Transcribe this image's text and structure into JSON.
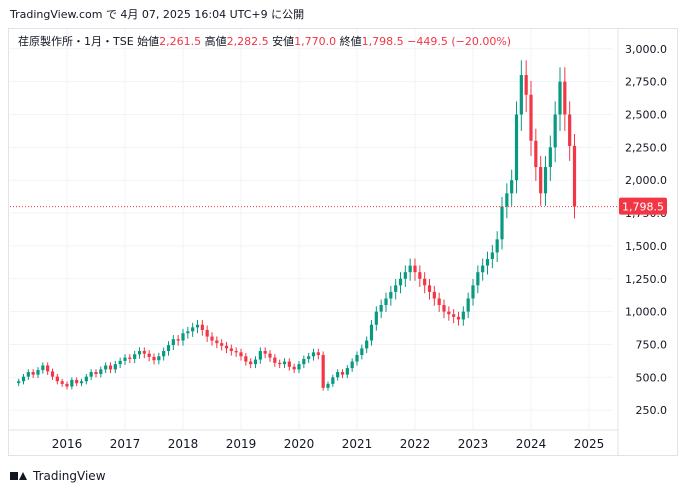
{
  "header": {
    "text": "TradingView.com で 4月 07, 2025 16:04 UTC+9 に公開"
  },
  "legend": {
    "symbol": "荏原製作所・1月・TSE",
    "open_label": "始値",
    "open": "2,261.5",
    "high_label": "高値",
    "high": "2,282.5",
    "low_label": "安値",
    "low": "1,770.0",
    "close_label": "終値",
    "close": "1,798.5",
    "change": "−449.5 (−20.00%)"
  },
  "footer": {
    "brand": "TradingView"
  },
  "colors": {
    "up": "#089981",
    "down": "#f23645",
    "grid": "#f0f3fa",
    "axis_text": "#131722"
  },
  "chart_data": {
    "type": "candlestick",
    "interval": "1 month",
    "title": "荏原製作所・1月・TSE",
    "y_ticks": [
      "250.0",
      "500.0",
      "750.0",
      "1,000.0",
      "1,250.0",
      "1,500.0",
      "1,750.0",
      "2,000.0",
      "2,250.0",
      "2,500.0",
      "2,750.0",
      "3,000.0"
    ],
    "x_ticks": [
      "2016",
      "2017",
      "2018",
      "2019",
      "2020",
      "2021",
      "2022",
      "2023",
      "2024",
      "2025"
    ],
    "ylim": [
      0,
      3125
    ],
    "last_price_label": "1,798.5",
    "last_price": 1798.5,
    "close_series_start": "2015-03",
    "closes": [
      470,
      505,
      540,
      520,
      555,
      590,
      545,
      505,
      470,
      450,
      430,
      480,
      455,
      470,
      505,
      540,
      525,
      560,
      590,
      560,
      600,
      625,
      650,
      640,
      675,
      700,
      680,
      655,
      630,
      660,
      700,
      745,
      790,
      780,
      835,
      850,
      880,
      900,
      860,
      810,
      780,
      760,
      740,
      720,
      700,
      690,
      660,
      620,
      600,
      635,
      700,
      680,
      650,
      610,
      600,
      620,
      580,
      560,
      600,
      640,
      660,
      690,
      670,
      420,
      450,
      500,
      540,
      520,
      570,
      620,
      670,
      720,
      780,
      900,
      1000,
      1050,
      1100,
      1150,
      1200,
      1250,
      1300,
      1350,
      1300,
      1250,
      1200,
      1150,
      1100,
      1050,
      1000,
      980,
      960,
      940,
      1000,
      1100,
      1200,
      1300,
      1350,
      1400,
      1450,
      1550,
      1800,
      1900,
      2000,
      2500,
      2800,
      2650,
      2300,
      2100,
      1900,
      2100,
      2250,
      2500,
      2750,
      2500,
      2260,
      1798.5
    ]
  }
}
